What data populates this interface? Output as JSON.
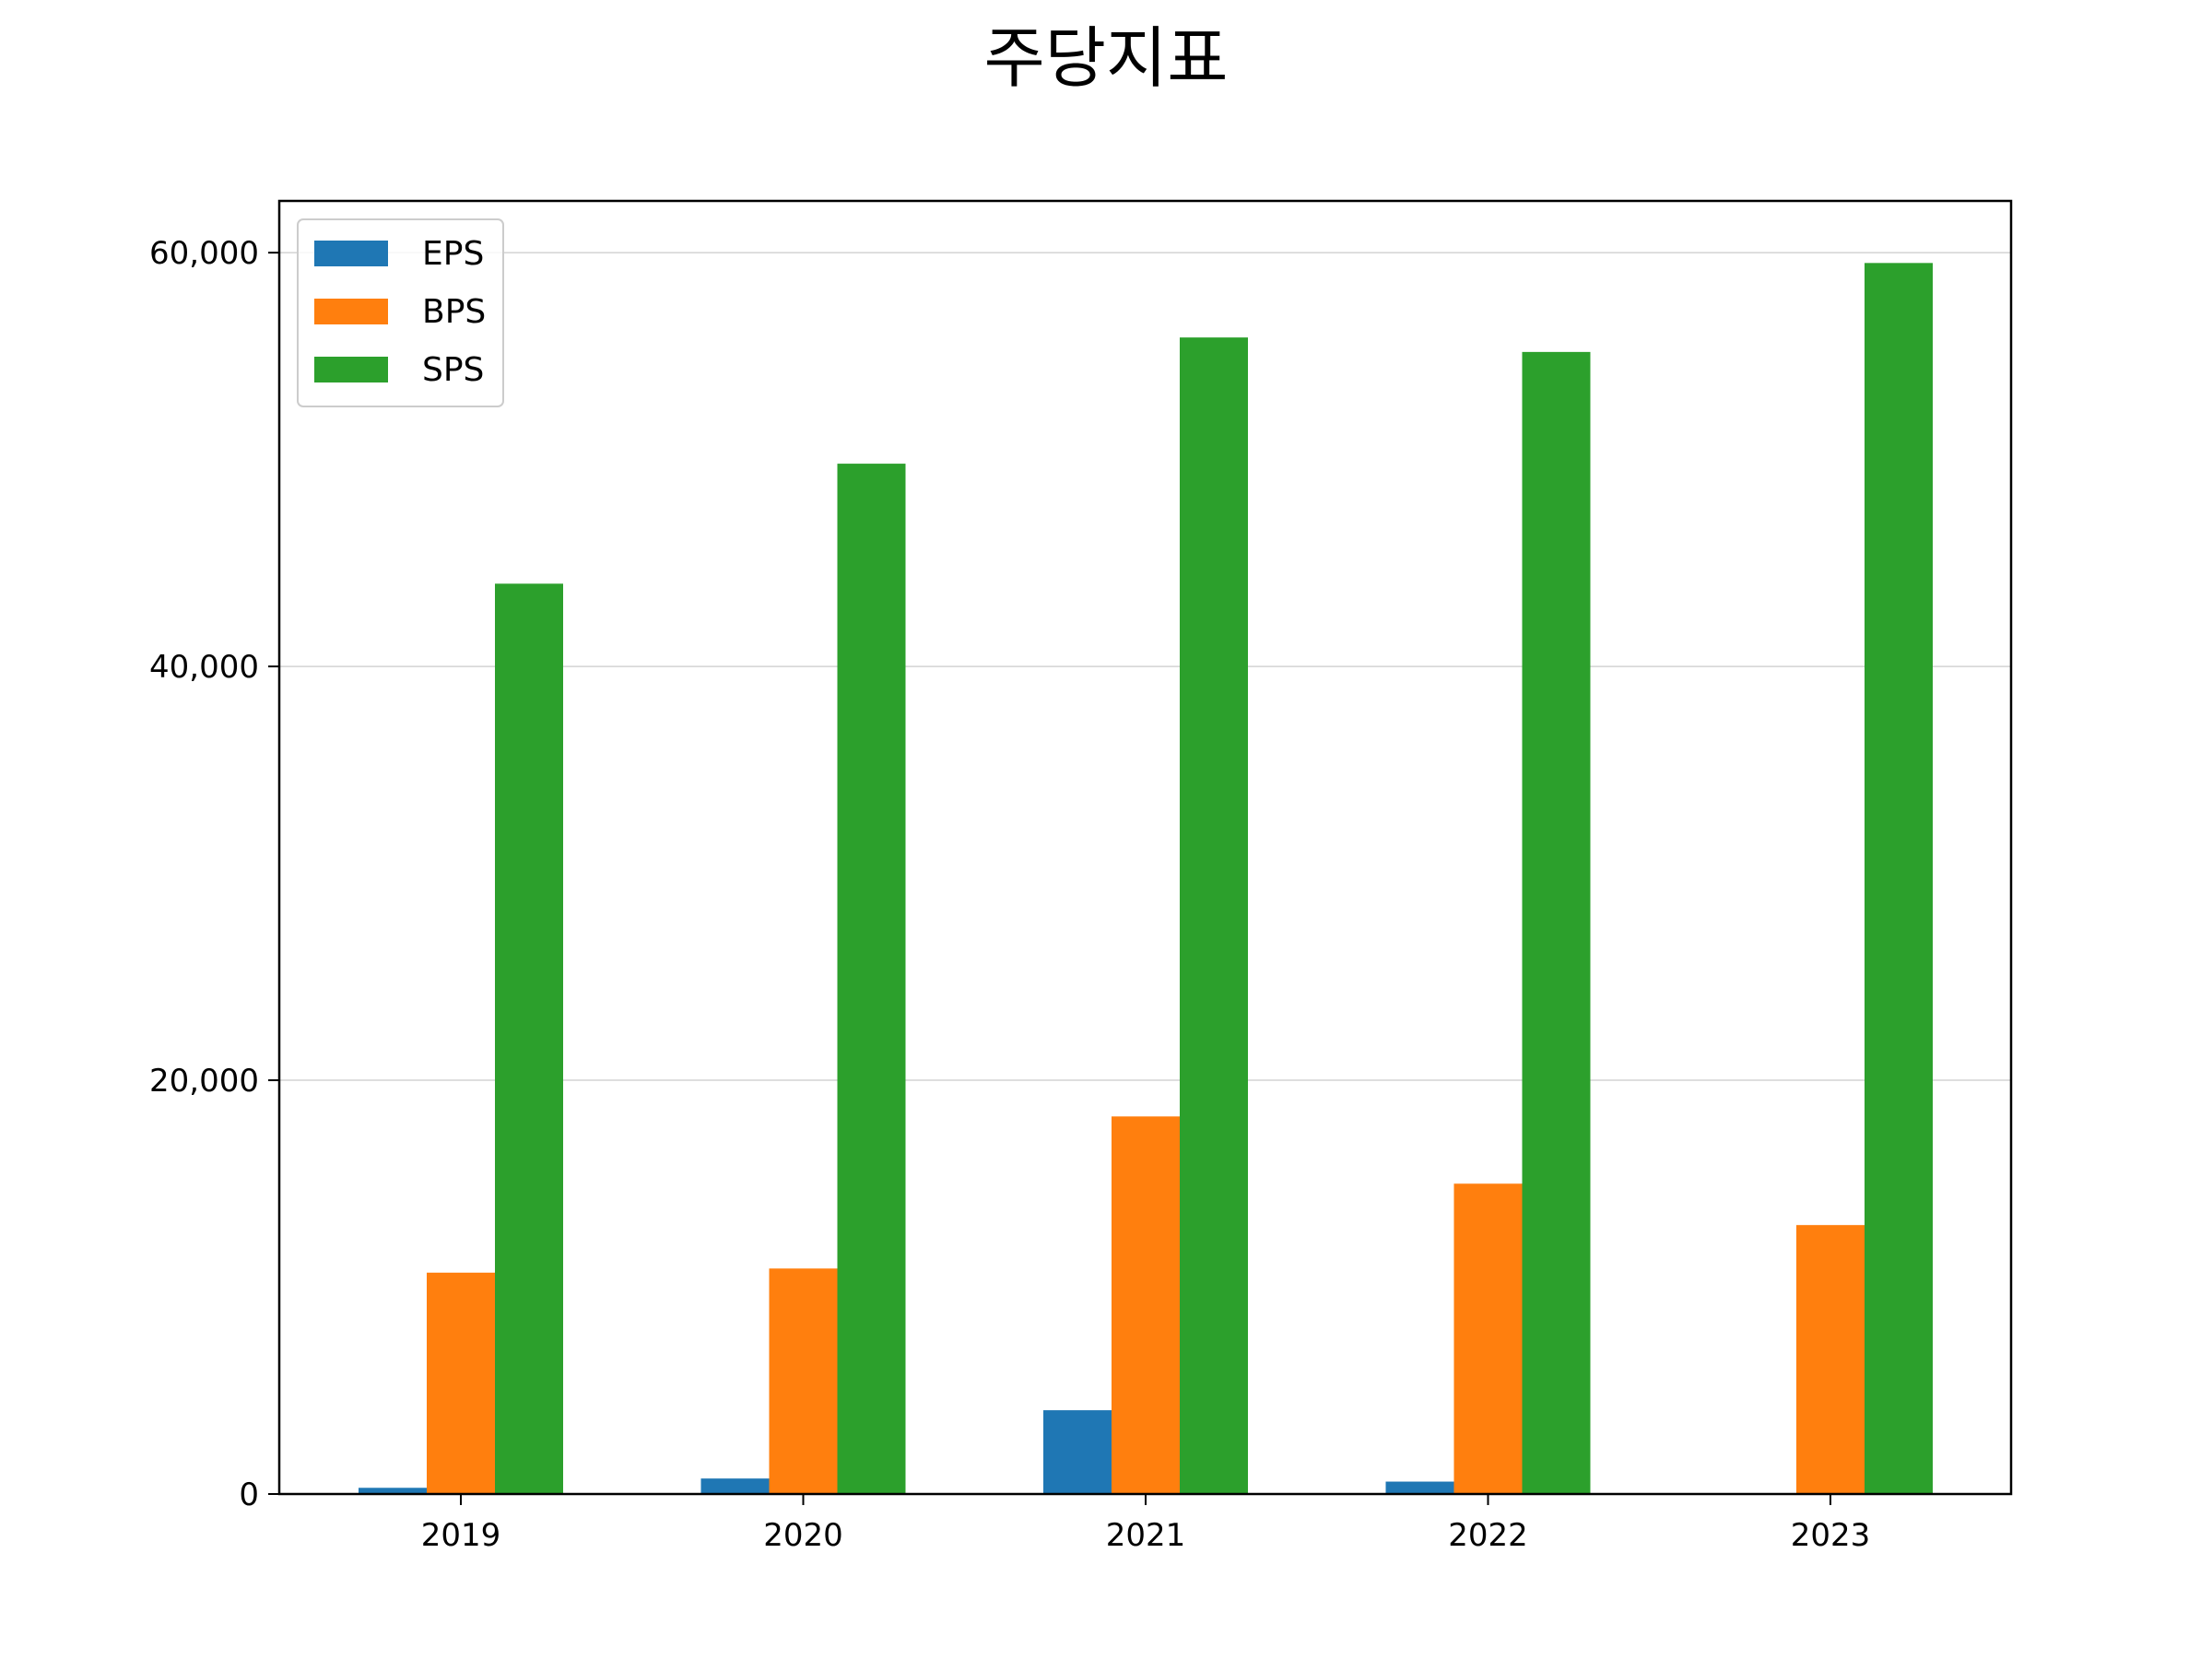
{
  "chart_data": {
    "type": "bar",
    "title": "주당지표",
    "xlabel": "",
    "ylabel": "",
    "categories": [
      "2019",
      "2020",
      "2021",
      "2022",
      "2023"
    ],
    "series": [
      {
        "name": "EPS",
        "color": "#1f77b4",
        "values": [
          300,
          750,
          4050,
          600,
          0
        ]
      },
      {
        "name": "BPS",
        "color": "#ff7f0e",
        "values": [
          10700,
          10900,
          18250,
          15000,
          13000
        ]
      },
      {
        "name": "SPS",
        "color": "#2ca02c",
        "values": [
          44000,
          49800,
          55900,
          55200,
          59500
        ]
      }
    ],
    "ylim": [
      0,
      62500
    ],
    "yticks": [
      0,
      20000,
      40000,
      60000
    ],
    "ytick_labels": [
      "0",
      "20,000",
      "40,000",
      "60,000"
    ],
    "grid": "y",
    "legend_position": "top-left"
  }
}
